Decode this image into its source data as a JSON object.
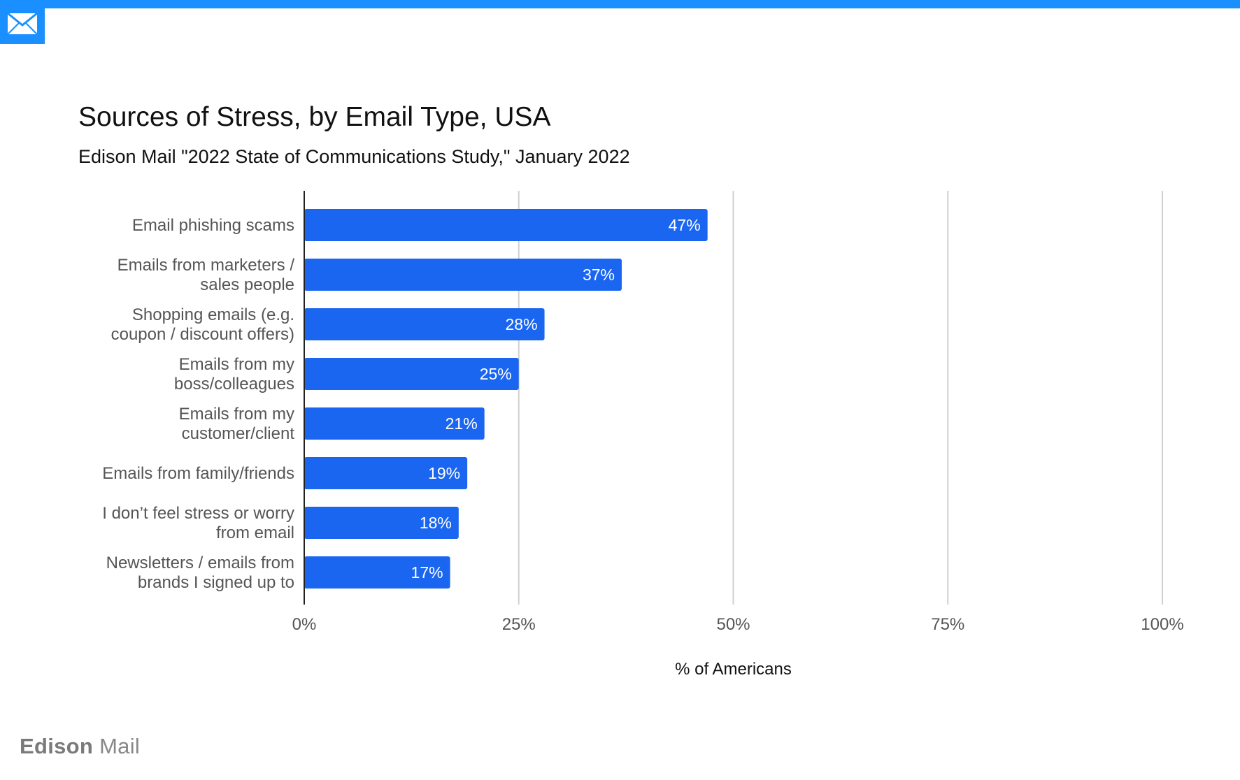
{
  "header": {
    "title": "Sources of Stress, by Email Type, USA",
    "subtitle": "Edison Mail \"2022 State of Communications Study,\" January 2022"
  },
  "footer": {
    "brand_bold": "Edison",
    "brand_light": "Mail"
  },
  "colors": {
    "accent": "#1a8fff",
    "bar": "#1a66f0",
    "grid": "#d0d0d0"
  },
  "icons": {
    "logo": "envelope-icon"
  },
  "chart_data": {
    "type": "bar",
    "orientation": "horizontal",
    "title": "Sources of Stress, by Email Type, USA",
    "subtitle": "Edison Mail \"2022 State of Communications Study,\" January 2022",
    "categories": [
      [
        "Email phishing scams"
      ],
      [
        "Emails from marketers /",
        "sales people"
      ],
      [
        "Shopping emails (e.g.",
        "coupon / discount offers)"
      ],
      [
        "Emails from my",
        "boss/colleagues"
      ],
      [
        "Emails from my",
        "customer/client"
      ],
      [
        "Emails from family/friends"
      ],
      [
        "I don’t feel stress or worry",
        "from email"
      ],
      [
        "Newsletters / emails from",
        "brands I signed up to"
      ]
    ],
    "values": [
      47,
      37,
      28,
      25,
      21,
      19,
      18,
      17
    ],
    "data_labels": [
      "47%",
      "37%",
      "28%",
      "25%",
      "21%",
      "19%",
      "18%",
      "17%"
    ],
    "xlim": [
      0,
      100
    ],
    "xticks": [
      0,
      25,
      50,
      75,
      100
    ],
    "xtick_labels": [
      "0%",
      "25%",
      "50%",
      "75%",
      "100%"
    ],
    "xlabel": "% of Americans",
    "ylabel": "",
    "grid": true,
    "legend": "none"
  }
}
